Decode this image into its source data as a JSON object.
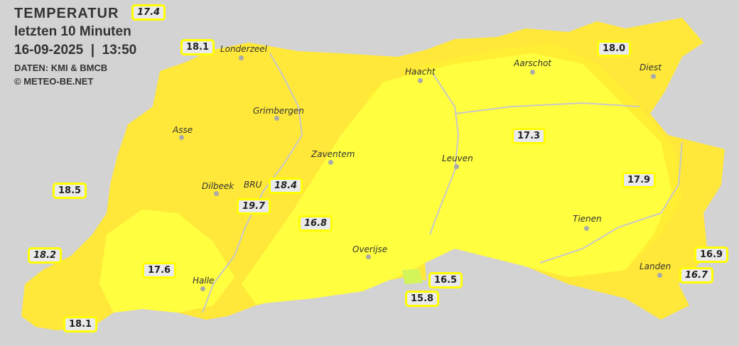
{
  "header": {
    "title": "TEMPERATUR",
    "subtitle": "letzten 10 Minuten",
    "datetime": "16-09-2025  |  13:50",
    "source": "DATEN: KMI & BMCB",
    "copyright": "© METEO-BE.NET"
  },
  "colors": {
    "background": "#d3d3d3",
    "zone_warm": "#ffe83a",
    "zone_mid": "#ffee33",
    "zone_cool": "#ffff40",
    "zone_coolest": "#d4f55a",
    "label_border": "#ffff00"
  },
  "cities": [
    "Londerzeel",
    "Haacht",
    "Aarschot",
    "Diest",
    "Grimbergen",
    "Asse",
    "Zaventem",
    "Leuven",
    "Dilbeek",
    "BRU",
    "Overijse",
    "Tienen",
    "Halle",
    "Landen"
  ],
  "stations": [
    {
      "value": "17.4",
      "italic": true
    },
    {
      "value": "18.1",
      "italic": false
    },
    {
      "value": "18.0",
      "italic": false
    },
    {
      "value": "17.3",
      "italic": false
    },
    {
      "value": "18.5",
      "italic": false
    },
    {
      "value": "18.4",
      "italic": true
    },
    {
      "value": "19.7",
      "italic": true
    },
    {
      "value": "17.9",
      "italic": false
    },
    {
      "value": "16.8",
      "italic": true
    },
    {
      "value": "18.2",
      "italic": true
    },
    {
      "value": "17.6",
      "italic": false
    },
    {
      "value": "16.5",
      "italic": false
    },
    {
      "value": "15.8",
      "italic": false
    },
    {
      "value": "16.9",
      "italic": false
    },
    {
      "value": "16.7",
      "italic": true
    },
    {
      "value": "18.1",
      "italic": false
    }
  ]
}
